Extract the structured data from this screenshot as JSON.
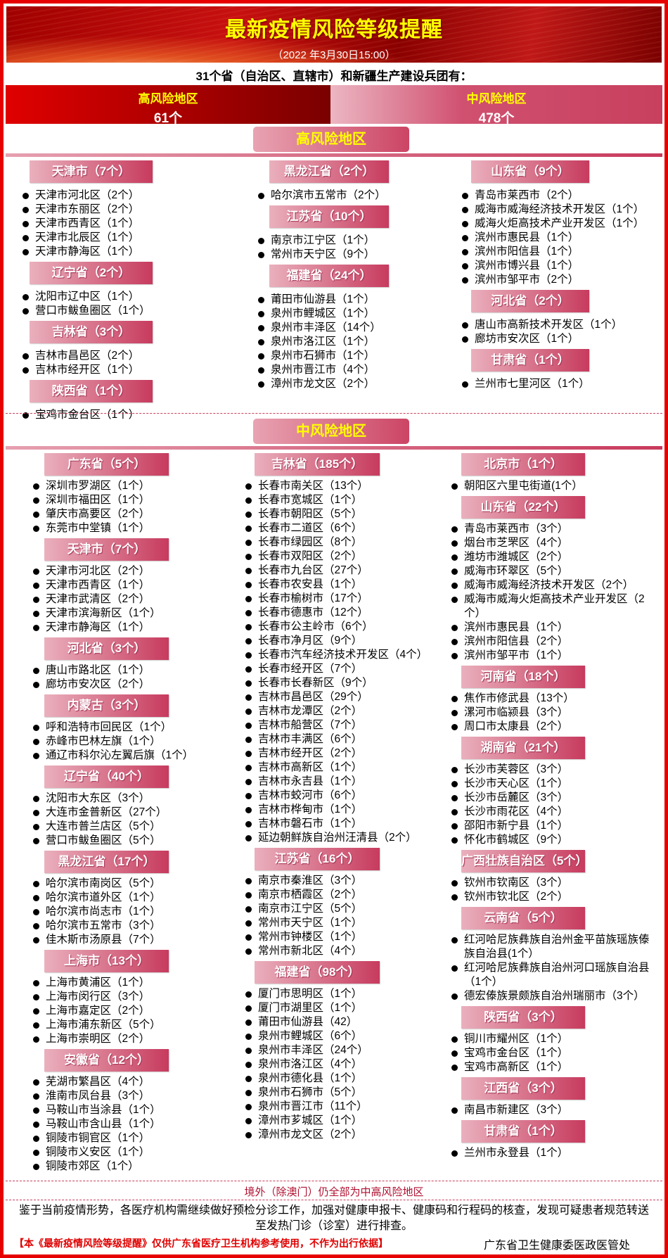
{
  "header": {
    "title": "最新疫情风险等级提醒",
    "subtitle": "（2022 年3月30日15:00）",
    "lead": "31个省（自治区、直辖市）和新疆生产建设兵团有："
  },
  "summary": {
    "high_label": "高风险地区",
    "high_count": "61个",
    "mid_label": "中风险地区",
    "mid_count": "478个"
  },
  "colors": {
    "frame": "#e60000",
    "title": "#ffff00",
    "tag_gradient": [
      "#eab0bd",
      "#c73b5e"
    ]
  },
  "high": {
    "title": "高风险地区",
    "columns": [
      [
        {
          "name": "天津市（7个）",
          "items": [
            "天津市河北区（2个）",
            "天津市东丽区（2个）",
            "天津市西青区（1个）",
            "天津市北辰区（1个）",
            "天津市静海区（1个）"
          ]
        },
        {
          "name": "辽宁省（2个）",
          "items": [
            "沈阳市辽中区（1个）",
            "营口市鲅鱼圈区（1个）"
          ]
        },
        {
          "name": "吉林省（3个）",
          "items": [
            "吉林市昌邑区（2个）",
            "吉林市经开区（1个）"
          ]
        },
        {
          "name": "陕西省（1个）",
          "items": [
            "宝鸡市金台区（1个）"
          ]
        }
      ],
      [
        {
          "name": "黑龙江省（2个）",
          "items": [
            "哈尔滨市五常市（2个）"
          ]
        },
        {
          "name": "江苏省（10个）",
          "items": [
            "南京市江宁区（1个）",
            "常州市天宁区（9个）"
          ]
        },
        {
          "name": "福建省（24个）",
          "items": [
            "莆田市仙游县（1个）",
            "泉州市鲤城区（1个）",
            "泉州市丰泽区（14个）",
            "泉州市洛江区（1个）",
            "泉州市石狮市（1个）",
            "泉州市晋江市（4个）",
            "漳州市龙文区（2个）"
          ]
        }
      ],
      [
        {
          "name": "山东省（9个）",
          "items": [
            "青岛市莱西市（2个）",
            "威海市威海经济技术开发区（1个）",
            "威海火炬高技术产业开发区（1个）",
            "滨州市惠民县（1个）",
            "滨州市阳信县（1个）",
            "滨州市博兴县（1个）",
            "滨州市邹平市（2个）"
          ]
        },
        {
          "name": "河北省（2个）",
          "items": [
            "唐山市高新技术开发区（1个）",
            "廊坊市安次区（1个）"
          ]
        },
        {
          "name": "甘肃省（1个）",
          "items": [
            "兰州市七里河区（1个）"
          ]
        }
      ]
    ]
  },
  "mid": {
    "title": "中风险地区",
    "columns": [
      [
        {
          "name": "广东省（5个）",
          "items": [
            "深圳市罗湖区（1个）",
            "深圳市福田区（1个）",
            "肇庆市高要区（2个）",
            "东莞市中堂镇（1个）"
          ]
        },
        {
          "name": "天津市（7个）",
          "items": [
            "天津市河北区（2个）",
            "天津市西青区（1个）",
            "天津市武清区（2个）",
            "天津市滨海新区（1个）",
            "天津市静海区（1个）"
          ]
        },
        {
          "name": "河北省（3个）",
          "items": [
            "唐山市路北区（1个）",
            "廊坊市安次区（2个）"
          ]
        },
        {
          "name": "内蒙古（3个）",
          "items": [
            "呼和浩特市回民区（1个）",
            "赤峰市巴林左旗（1个）",
            "通辽市科尔沁左翼后旗（1个）"
          ]
        },
        {
          "name": "辽宁省（40个）",
          "items": [
            "沈阳市大东区（3个）",
            "大连市金普新区（27个）",
            "大连市普兰店区（5个）",
            "营口市鲅鱼圈区（5个）"
          ]
        },
        {
          "name": "黑龙江省（17个）",
          "items": [
            "哈尔滨市南岗区（5个）",
            "哈尔滨市道外区（1个）",
            "哈尔滨市尚志市（1个）",
            "哈尔滨市五常市（3个）",
            "佳木斯市汤原县（7个）"
          ]
        },
        {
          "name": "上海市（13个）",
          "items": [
            "上海市黄浦区（1个）",
            "上海市闵行区（3个）",
            "上海市嘉定区（2个）",
            "上海市浦东新区（5个）",
            "上海市崇明区（2个）"
          ]
        },
        {
          "name": "安徽省（12个）",
          "items": [
            "芜湖市繁昌区（4个）",
            "淮南市凤台县（3个）",
            "马鞍山市当涂县（1个）",
            "马鞍山市含山县（1个）",
            "铜陵市铜官区（1个）",
            "铜陵市义安区（1个）",
            "铜陵市郊区（1个）"
          ]
        }
      ],
      [
        {
          "name": "吉林省（185个）",
          "items": [
            "长春市南关区（13个）",
            "长春市宽城区（1个）",
            "长春市朝阳区（5个）",
            "长春市二道区（6个）",
            "长春市绿园区（8个）",
            "长春市双阳区（2个）",
            "长春市九台区（27个）",
            "长春市农安县（1个）",
            "长春市榆树市（17个）",
            "长春市德惠市（12个）",
            "长春市公主岭市（6个）",
            "长春市净月区（9个）",
            "长春市汽车经济技术开发区（4个）",
            "长春市经开区（7个）",
            "长春市长春新区（9个）",
            "吉林市昌邑区（29个）",
            "吉林市龙潭区（2个）",
            "吉林市船营区（7个）",
            "吉林市丰满区（6个）",
            "吉林市经开区（2个）",
            "吉林市高新区（1个）",
            "吉林市永吉县（1个）",
            "吉林市蛟河市（6个）",
            "吉林市桦甸市（1个）",
            "吉林市磐石市（1个）",
            "延边朝鲜族自治州汪清县（2个）"
          ]
        },
        {
          "name": "江苏省（16个）",
          "items": [
            "南京市秦淮区（3个）",
            "南京市栖霞区（2个）",
            "南京市江宁区（5个）",
            "常州市天宁区（1个）",
            "常州市钟楼区（1个）",
            "常州市新北区（4个）"
          ]
        },
        {
          "name": "福建省（98个）",
          "items": [
            "厦门市思明区（1个）",
            "厦门市湖里区（1个）",
            "莆田市仙游县（42）",
            "泉州市鲤城区（6个）",
            "泉州市丰泽区（24个）",
            "泉州市洛江区（4个）",
            "泉州市德化县（1个）",
            "泉州市石狮市（5个）",
            "泉州市晋江市（11个）",
            "漳州市芗城区（1个）",
            "漳州市龙文区（2个）"
          ]
        }
      ],
      [
        {
          "name": "北京市（1个）",
          "items": [
            "朝阳区六里屯街道(1个）"
          ]
        },
        {
          "name": "山东省（22个）",
          "items": [
            "青岛市莱西市（3个）",
            "烟台市芝罘区（4个）",
            "潍坊市潍城区（2个）",
            "威海市环翠区（5个）",
            "威海市威海经济技术开发区（2个）",
            "威海市威海火炬高技术产业开发区（2个）",
            "滨州市惠民县（1个）",
            "滨州市阳信县（2个）",
            "滨州市邹平市（1个）"
          ]
        },
        {
          "name": "河南省（18个）",
          "items": [
            "焦作市修武县（13个）",
            "漯河市临颍县（3个）",
            "周口市太康县（2个）"
          ]
        },
        {
          "name": "湖南省（21个）",
          "items": [
            "长沙市芙蓉区（3个）",
            "长沙市天心区（1个）",
            "长沙市岳麓区（3个）",
            "长沙市雨花区（4个）",
            "邵阳市新宁县（1个）",
            "怀化市鹤城区（9个）"
          ]
        },
        {
          "name": "广西壮族自治区（5个）",
          "items": [
            "钦州市钦南区（3个）",
            "钦州市钦北区（2个）"
          ]
        },
        {
          "name": "云南省（5个）",
          "items": [
            "红河哈尼族彝族自治州金平苗族瑶族傣族自治县(1个）",
            "红河哈尼族彝族自治州河口瑶族自治县（1个）",
            "德宏傣族景颇族自治州瑞丽市（3个）"
          ]
        },
        {
          "name": "陕西省（3个）",
          "items": [
            "铜川市耀州区（1个）",
            "宝鸡市金台区（1个）",
            "宝鸡市高新区（1个）"
          ]
        },
        {
          "name": "江西省（3个）",
          "items": [
            "南昌市新建区（3个）"
          ]
        },
        {
          "name": "甘肃省（1个）",
          "items": [
            "兰州市永登县（1个）"
          ]
        }
      ]
    ]
  },
  "footer": {
    "overseas": "境外（除澳门）仍全部为中高风险地区",
    "notice": "鉴于当前疫情形势，各医疗机构需继续做好预检分诊工作，加强对健康申报卡、健康码和行程码的核查，发现可疑患者规范转送至发热门诊（诊室）进行排查。",
    "disclaimer": "【本《最新疫情风险等级提醒》仅供广东省医疗卫生机构参考使用，不作为出行依据】",
    "org": "广东省卫生健康委医政医管处"
  }
}
